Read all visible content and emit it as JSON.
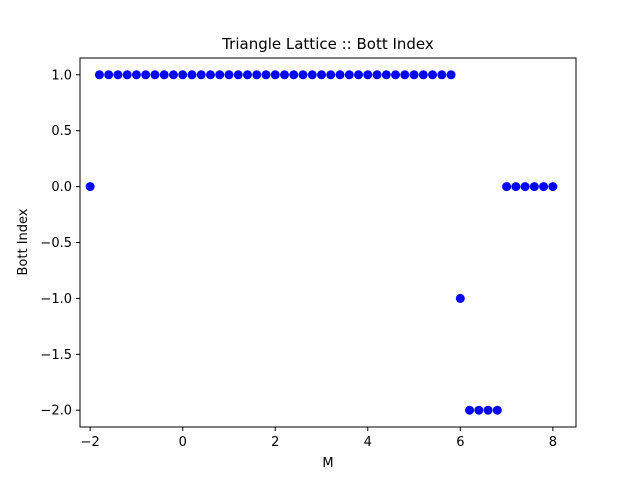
{
  "chart_data": {
    "type": "scatter",
    "title": "Triangle Lattice :: Bott Index",
    "xlabel": "M",
    "ylabel": "Bott Index",
    "xlim": [
      -2.22,
      8.5
    ],
    "ylim": [
      -2.15,
      1.15
    ],
    "xticks": [
      -2,
      0,
      2,
      4,
      6,
      8
    ],
    "xtick_labels": [
      "−2",
      "0",
      "2",
      "4",
      "6",
      "8"
    ],
    "yticks": [
      1.0,
      0.5,
      0.0,
      -0.5,
      -1.0,
      -1.5,
      -2.0
    ],
    "ytick_labels": [
      "1.0",
      "0.5",
      "0.0",
      "−0.5",
      "−1.0",
      "−1.5",
      "−2.0"
    ],
    "grid": false,
    "marker_color": "#0000ff",
    "series": [
      {
        "x": [
          -2.0,
          -1.8,
          -1.6,
          -1.4,
          -1.2,
          -1.0,
          -0.8,
          -0.6,
          -0.4,
          -0.2,
          0.0,
          0.2,
          0.4,
          0.6,
          0.8,
          1.0,
          1.2,
          1.4,
          1.6,
          1.8,
          2.0,
          2.2,
          2.4,
          2.6,
          2.8,
          3.0,
          3.2,
          3.4,
          3.6,
          3.8,
          4.0,
          4.2,
          4.4,
          4.6,
          4.8,
          5.0,
          5.2,
          5.4,
          5.6,
          5.8,
          6.0,
          6.2,
          6.4,
          6.6,
          6.8,
          7.0,
          7.2,
          7.4,
          7.6,
          7.8,
          8.0
        ],
        "y": [
          0,
          1,
          1,
          1,
          1,
          1,
          1,
          1,
          1,
          1,
          1,
          1,
          1,
          1,
          1,
          1,
          1,
          1,
          1,
          1,
          1,
          1,
          1,
          1,
          1,
          1,
          1,
          1,
          1,
          1,
          1,
          1,
          1,
          1,
          1,
          1,
          1,
          1,
          1,
          1,
          -1,
          -2,
          -2,
          -2,
          -2,
          0,
          0,
          0,
          0,
          0,
          0
        ]
      }
    ]
  }
}
